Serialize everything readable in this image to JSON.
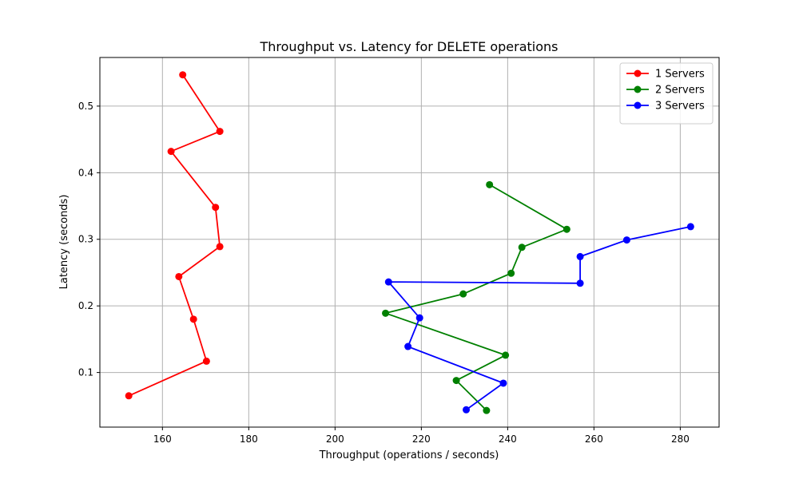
{
  "chart_data": {
    "type": "line",
    "title": "Throughput vs. Latency for DELETE operations",
    "xlabel": "Throughput (operations / seconds)",
    "ylabel": "Latency (seconds)",
    "xlim": [
      145.5,
      289
    ],
    "ylim": [
      0.018,
      0.573
    ],
    "xticks": [
      160,
      180,
      200,
      220,
      240,
      260,
      280
    ],
    "yticks": [
      0.1,
      0.2,
      0.3,
      0.4,
      0.5
    ],
    "ytick_labels": [
      "0.1",
      "0.2",
      "0.3",
      "0.4",
      "0.5"
    ],
    "grid": true,
    "legend_position": "top-right",
    "series": [
      {
        "name": "1 Servers",
        "color": "#ff0000",
        "marker": "circle",
        "points": [
          [
            164.7,
            0.547
          ],
          [
            173.3,
            0.462
          ],
          [
            162.0,
            0.432
          ],
          [
            172.3,
            0.348
          ],
          [
            173.3,
            0.289
          ],
          [
            163.8,
            0.244
          ],
          [
            167.2,
            0.18
          ],
          [
            170.2,
            0.117
          ],
          [
            152.2,
            0.065
          ]
        ]
      },
      {
        "name": "2 Servers",
        "color": "#008000",
        "marker": "circle",
        "points": [
          [
            235.8,
            0.382
          ],
          [
            253.7,
            0.315
          ],
          [
            243.3,
            0.288
          ],
          [
            240.8,
            0.249
          ],
          [
            229.7,
            0.218
          ],
          [
            211.7,
            0.189
          ],
          [
            239.5,
            0.126
          ],
          [
            228.1,
            0.088
          ],
          [
            235.1,
            0.043
          ]
        ]
      },
      {
        "name": "3 Servers",
        "color": "#0000ff",
        "marker": "circle",
        "points": [
          [
            282.4,
            0.319
          ],
          [
            267.6,
            0.299
          ],
          [
            256.8,
            0.274
          ],
          [
            256.8,
            0.234
          ],
          [
            212.4,
            0.236
          ],
          [
            219.6,
            0.182
          ],
          [
            216.9,
            0.139
          ],
          [
            239.0,
            0.084
          ],
          [
            230.4,
            0.044
          ]
        ]
      }
    ]
  }
}
